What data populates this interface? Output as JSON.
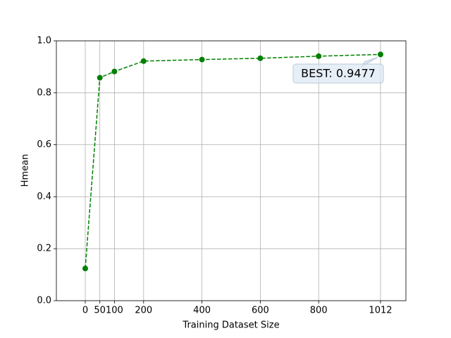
{
  "chart_data": {
    "type": "line",
    "x_label": "Training Dataset Size",
    "y_label": "Hmean",
    "x": [
      0,
      50,
      100,
      200,
      400,
      600,
      800,
      1012
    ],
    "series": [
      {
        "color": "#008000",
        "values": [
          0.124,
          0.858,
          0.882,
          0.922,
          0.928,
          0.933,
          0.941,
          0.9477
        ]
      }
    ],
    "xlim": [
      -99,
      1099
    ],
    "ylim": [
      0,
      1
    ],
    "xticks": [
      0,
      50,
      100,
      200,
      400,
      600,
      800,
      1012
    ],
    "yticks": [
      {
        "value": 0,
        "label": "0.0"
      },
      {
        "value": 0.2,
        "label": "0.2"
      },
      {
        "value": 0.4,
        "label": "0.4"
      },
      {
        "value": 0.6,
        "label": "0.6"
      },
      {
        "value": 0.8,
        "label": "0.8"
      },
      {
        "value": 1,
        "label": "1.0"
      }
    ],
    "grid": true,
    "annotation": "BEST: 0.9477"
  }
}
